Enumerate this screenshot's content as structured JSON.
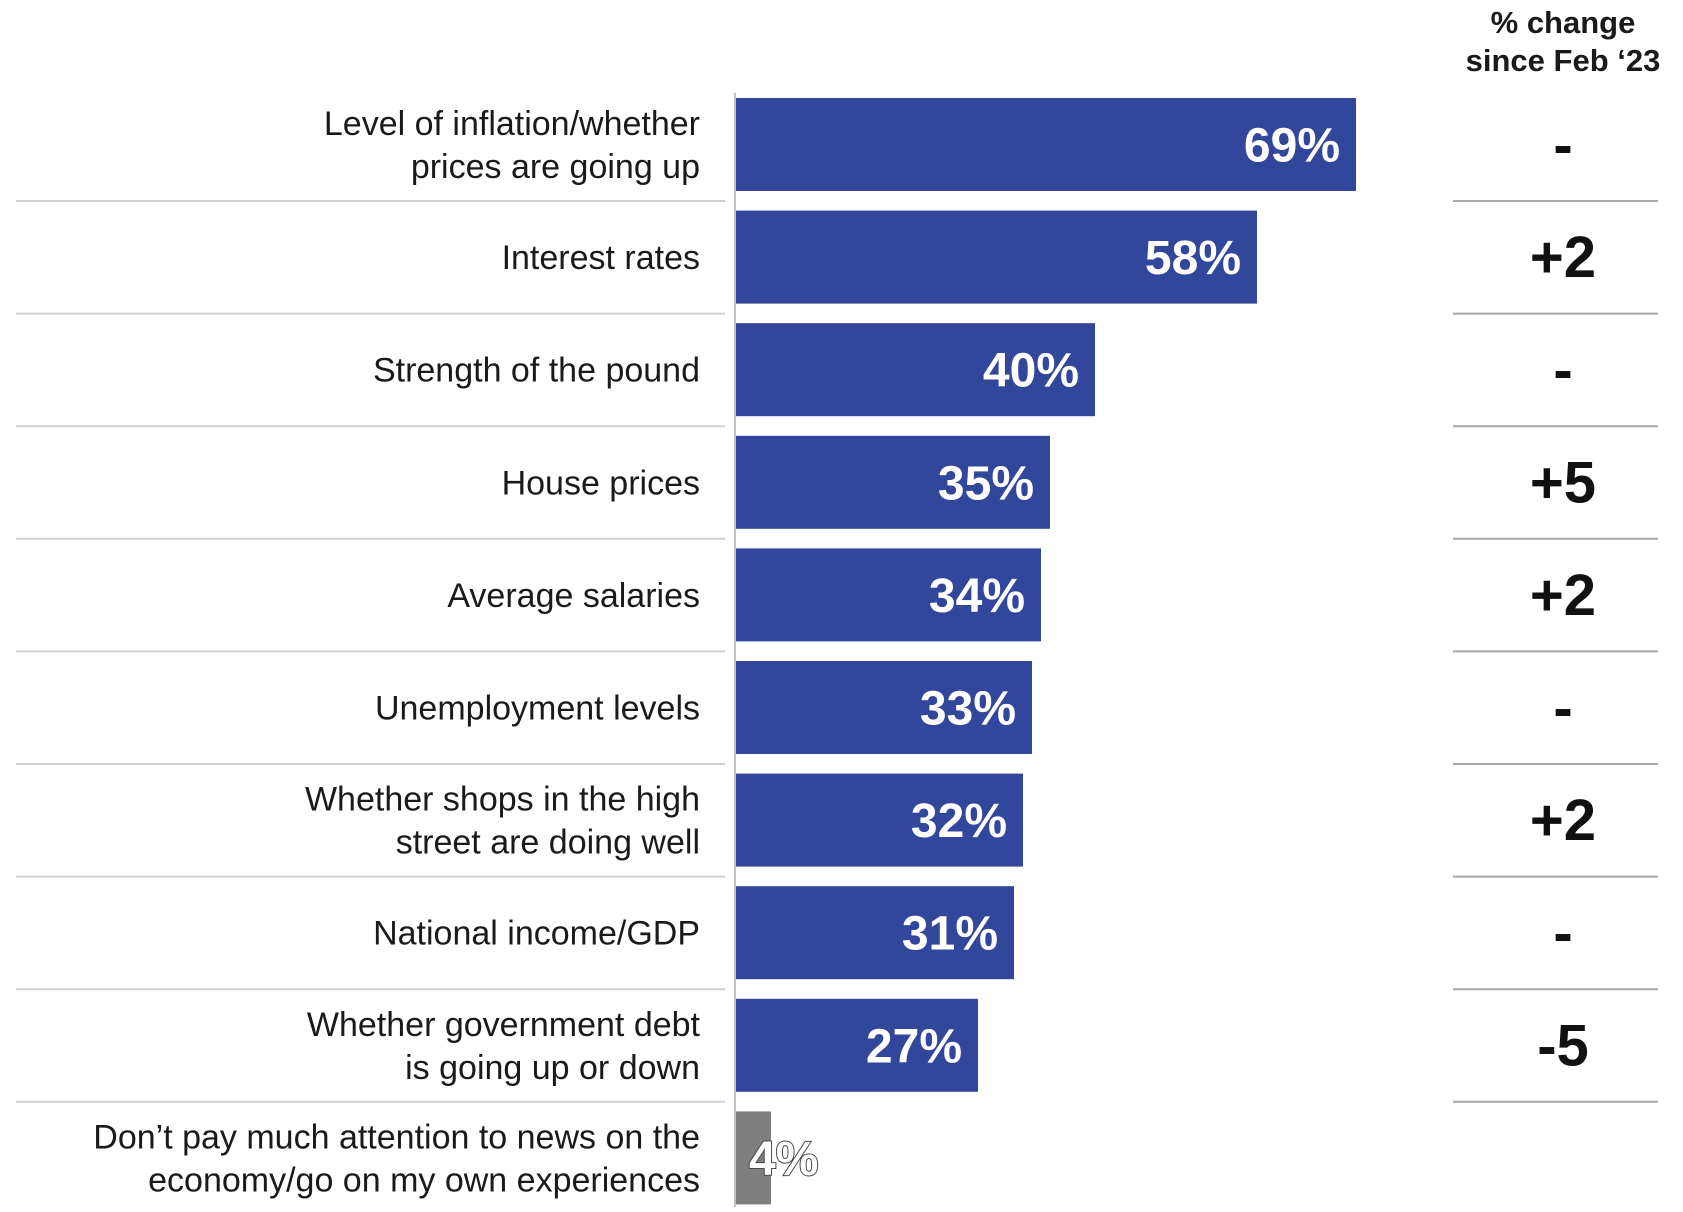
{
  "chart_data": {
    "type": "bar",
    "orientation": "horizontal",
    "categories": [
      [
        "Level of inflation/whether",
        "prices are going up"
      ],
      [
        "Interest rates"
      ],
      [
        "Strength of the pound"
      ],
      [
        "House prices"
      ],
      [
        "Average salaries"
      ],
      [
        "Unemployment levels"
      ],
      [
        "Whether shops in the high",
        "street are doing well"
      ],
      [
        "National income/GDP"
      ],
      [
        "Whether government debt",
        "is going up or down"
      ],
      [
        "Don’t pay much attention to news on the",
        "economy/go on my own experiences"
      ]
    ],
    "values": [
      69,
      58,
      40,
      35,
      34,
      33,
      32,
      31,
      27,
      4
    ],
    "value_labels": [
      "69%",
      "58%",
      "40%",
      "35%",
      "34%",
      "33%",
      "32%",
      "31%",
      "27%",
      "4%"
    ],
    "bar_colors": [
      "#32469c",
      "#32469c",
      "#32469c",
      "#32469c",
      "#32469c",
      "#32469c",
      "#32469c",
      "#32469c",
      "#32469c",
      "#7f7f7f"
    ],
    "xlim": [
      0,
      100
    ],
    "grid": false,
    "change_header": [
      "% change",
      "since Feb ‘23"
    ],
    "change_values": [
      "-",
      "+2",
      "-",
      "+5",
      "+2",
      "-",
      "+2",
      "-",
      "-5",
      ""
    ]
  }
}
